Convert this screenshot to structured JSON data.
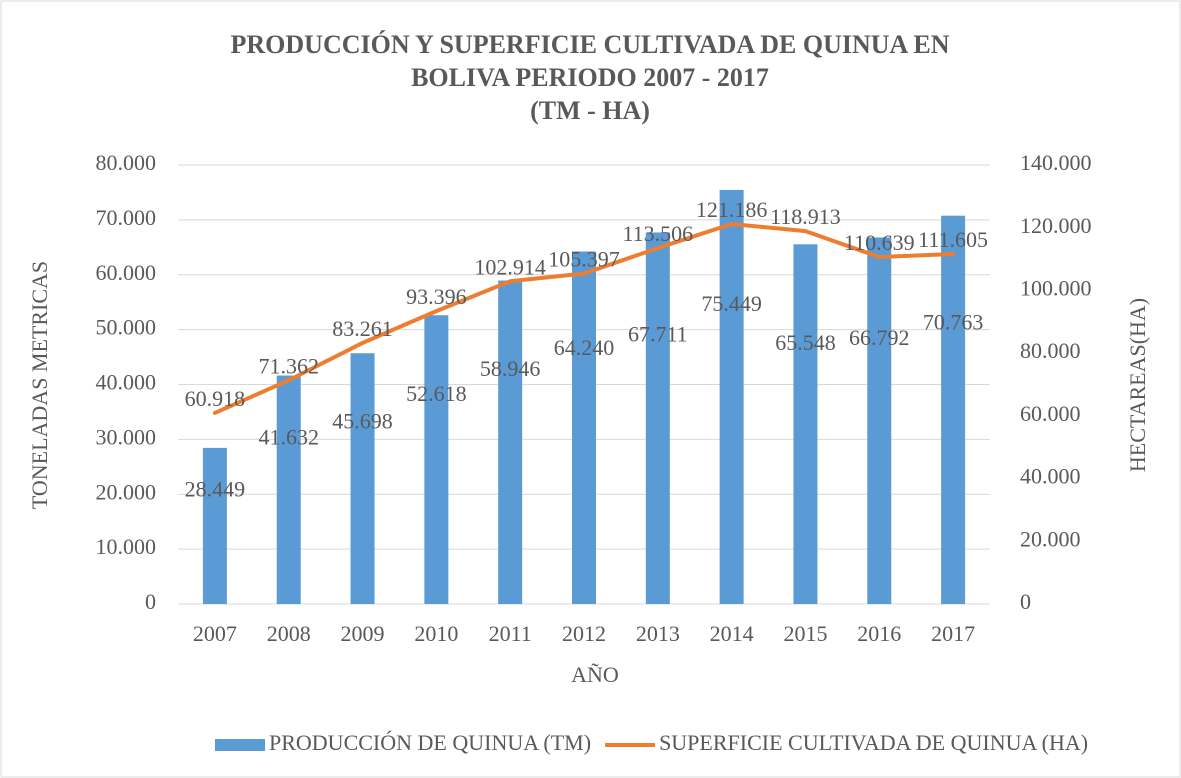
{
  "chart_data": {
    "type": "bar",
    "title": [
      "PRODUCCIÓN Y SUPERFICIE CULTIVADA DE QUINUA EN",
      "BOLIVA PERIODO 2007 - 2017",
      "(TM - HA)"
    ],
    "x_label": "AÑO",
    "y_label": "TONELADAS METRICAS",
    "y2_label": "HECTAREAS(HA)",
    "categories": [
      "2007",
      "2008",
      "2009",
      "2010",
      "2011",
      "2012",
      "2013",
      "2014",
      "2015",
      "2016",
      "2017"
    ],
    "series": [
      {
        "name": "PRODUCCIÓN DE QUINUA (TM)",
        "type": "bar",
        "color": "#5b9bd5",
        "values": [
          28449,
          41632,
          45698,
          52618,
          58946,
          64240,
          67711,
          75449,
          65548,
          66792,
          70763
        ],
        "value_labels": [
          "28.449",
          "41.632",
          "45.698",
          "52.618",
          "58.946",
          "64.240",
          "67.711",
          "75.449",
          "65.548",
          "66.792",
          "70.763"
        ]
      },
      {
        "name": "SUPERFICIE CULTIVADA DE QUINUA (HA)",
        "type": "line",
        "axis": "y2",
        "color": "#ed7d31",
        "values": [
          60918,
          71362,
          83261,
          93396,
          102914,
          105397,
          113506,
          121186,
          118913,
          110639,
          111605
        ],
        "value_labels": [
          "60.918",
          "71.362",
          "83.261",
          "93.396",
          "102.914",
          "105.397",
          "113.506",
          "121.186",
          "118.913",
          "110.639",
          "111.605"
        ]
      }
    ],
    "ylim": [
      0,
      80000
    ],
    "yticks": [
      0,
      {
        "value": 10000,
        "label": "10.000"
      },
      {
        "value": 20000,
        "label": "20.000"
      },
      {
        "value": 30000,
        "label": "30.000"
      },
      {
        "value": 40000,
        "label": "40.000"
      },
      {
        "value": 50000,
        "label": "50.000"
      },
      {
        "value": 60000,
        "label": "60.000"
      },
      {
        "value": 70000,
        "label": "70.000"
      },
      {
        "value": 80000,
        "label": "80.000"
      }
    ],
    "y2lim": [
      0,
      140000
    ],
    "y2ticks": [
      0,
      {
        "value": 20000,
        "label": "20.000"
      },
      {
        "value": 40000,
        "label": "40.000"
      },
      {
        "value": 60000,
        "label": "60.000"
      },
      {
        "value": 80000,
        "label": "80.000"
      },
      {
        "value": 100000,
        "label": "100.000"
      },
      {
        "value": 120000,
        "label": "120.000"
      },
      {
        "value": 140000,
        "label": "140.000"
      }
    ],
    "grid": true,
    "legend": "bottom"
  }
}
